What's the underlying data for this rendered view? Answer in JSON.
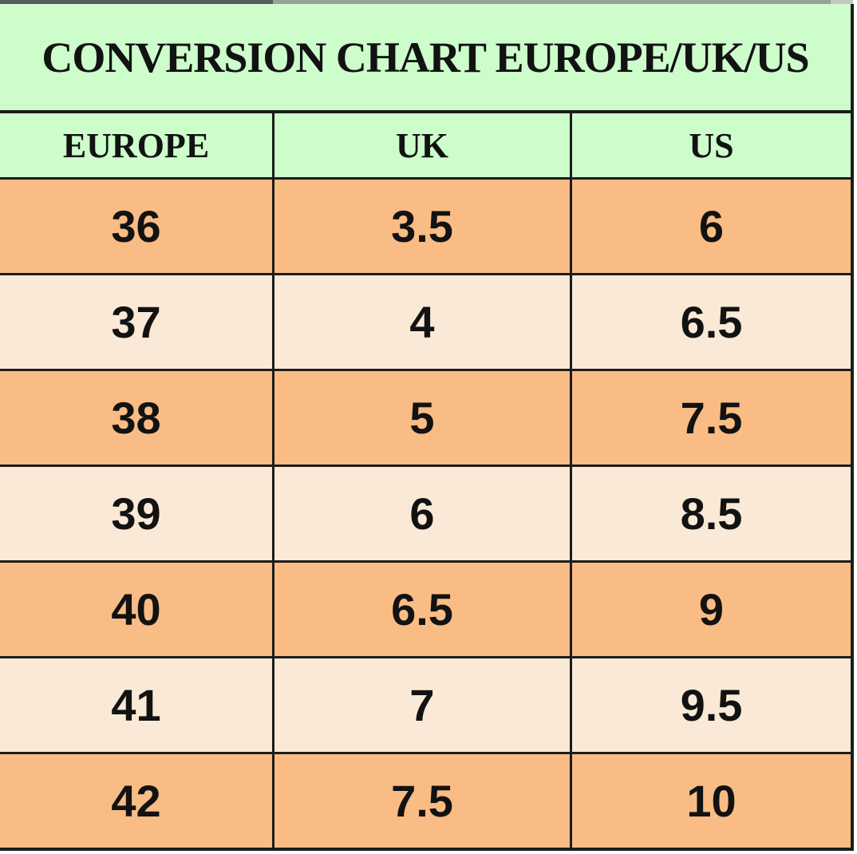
{
  "chart_data": {
    "type": "table",
    "title": "CONVERSION CHART EUROPE/UK/US",
    "columns": [
      "EUROPE",
      "UK",
      "US"
    ],
    "rows": [
      [
        "36",
        "3.5",
        "6"
      ],
      [
        "37",
        "4",
        "6.5"
      ],
      [
        "38",
        "5",
        "7.5"
      ],
      [
        "39",
        "6",
        "8.5"
      ],
      [
        "40",
        "6.5",
        "9"
      ],
      [
        "41",
        "7",
        "9.5"
      ],
      [
        "42",
        "7.5",
        "10"
      ]
    ],
    "layout_hints": {
      "row_striping": "orange rows alternate with light peach rows, starting with orange",
      "header_background": "light green",
      "grid": "on"
    }
  },
  "colors": {
    "header_green": "#ccfdcb",
    "row_orange": "#f9bc84",
    "row_peach": "#fae9d6",
    "border": "#1c1c1c",
    "text": "#121212"
  }
}
